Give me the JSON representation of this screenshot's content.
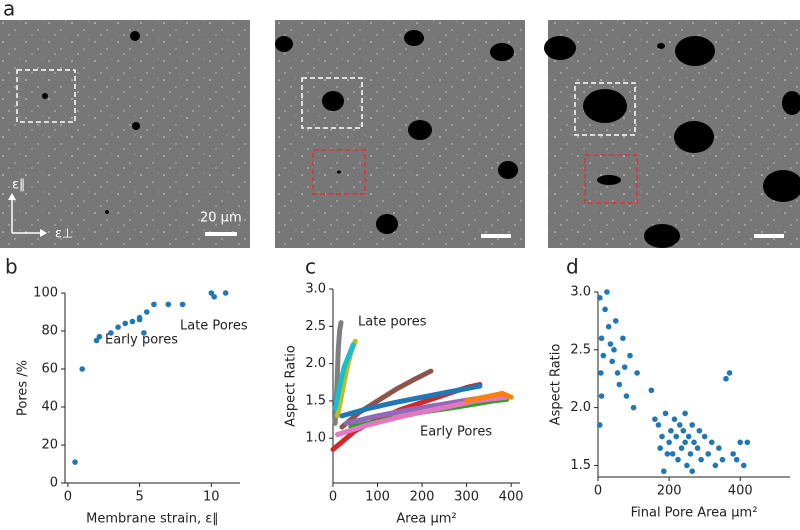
{
  "panel_labels": [
    "a",
    "b",
    "c",
    "d"
  ],
  "micrograph": {
    "scale_bar": "20 μm",
    "axis_parallel": "ε∥",
    "axis_perp": "ε⊥"
  },
  "chart_data": [
    {
      "type": "scatter",
      "xlabel": "Membrane strain, ε∥",
      "ylabel": "Pores /%",
      "annotations": [
        "Early pores",
        "Late Pores"
      ],
      "color": "#1f77b4",
      "x": [
        0.5,
        1,
        2,
        2.2,
        3,
        3.5,
        4,
        4.5,
        5,
        5,
        5.3,
        5.5,
        6,
        7,
        8,
        10,
        10.2,
        11
      ],
      "values": [
        11,
        60,
        75,
        77,
        79,
        82,
        84,
        85,
        86,
        87,
        79,
        90,
        94,
        94,
        94,
        100,
        98,
        100
      ],
      "xlim": [
        -0.2,
        12
      ],
      "xticks": [
        0,
        5,
        10
      ],
      "ylim": [
        0,
        100
      ],
      "yticks": [
        0,
        20,
        40,
        60,
        80,
        100
      ]
    },
    {
      "type": "line",
      "xlabel": "Area μm²",
      "ylabel": "Aspect Ratio",
      "annotations": [
        "Late pores",
        "Early Pores"
      ],
      "series": [
        {
          "color": "#7f7f7f",
          "x": [
            5,
            8,
            10,
            12,
            15,
            18
          ],
          "values": [
            1.2,
            1.6,
            1.9,
            2.2,
            2.45,
            2.55
          ]
        },
        {
          "color": "#bcbd22",
          "x": [
            10,
            20,
            30,
            40,
            50
          ],
          "values": [
            1.3,
            1.6,
            1.9,
            2.15,
            2.3
          ]
        },
        {
          "color": "#17becf",
          "x": [
            5,
            15,
            25,
            35,
            45
          ],
          "values": [
            1.4,
            1.7,
            1.95,
            2.1,
            2.25
          ]
        },
        {
          "color": "#8c564b",
          "x": [
            20,
            60,
            100,
            140,
            180,
            220
          ],
          "values": [
            1.15,
            1.35,
            1.5,
            1.65,
            1.78,
            1.9
          ]
        },
        {
          "color": "#d62728",
          "x": [
            0,
            50,
            100,
            150,
            200,
            250,
            300,
            330
          ],
          "values": [
            0.85,
            1.1,
            1.25,
            1.38,
            1.48,
            1.58,
            1.68,
            1.72
          ]
        },
        {
          "color": "#1f77b4",
          "x": [
            20,
            80,
            140,
            200,
            260,
            330
          ],
          "values": [
            1.3,
            1.4,
            1.48,
            1.55,
            1.62,
            1.7
          ]
        },
        {
          "color": "#9467bd",
          "x": [
            30,
            100,
            170,
            240,
            310,
            380
          ],
          "values": [
            1.2,
            1.3,
            1.38,
            1.45,
            1.52,
            1.58
          ]
        },
        {
          "color": "#2ca02c",
          "x": [
            40,
            120,
            200,
            280,
            360,
            390
          ],
          "values": [
            1.15,
            1.25,
            1.35,
            1.42,
            1.5,
            1.52
          ]
        },
        {
          "color": "#e377c2",
          "x": [
            10,
            80,
            160,
            240,
            320,
            390
          ],
          "values": [
            1.05,
            1.18,
            1.3,
            1.4,
            1.5,
            1.55
          ]
        },
        {
          "color": "#ff7f0e",
          "x": [
            300,
            340,
            380,
            400
          ],
          "values": [
            1.5,
            1.55,
            1.6,
            1.55
          ]
        }
      ],
      "xlim": [
        0,
        420
      ],
      "xticks": [
        0,
        100,
        200,
        300,
        400
      ],
      "ylim": [
        0.4,
        3.0
      ],
      "yticks": [
        {
          "value": 1,
          "label": "1.0"
        },
        1.5,
        {
          "value": 2,
          "label": "2.0"
        },
        2.5,
        {
          "value": 3,
          "label": "3.0"
        }
      ]
    },
    {
      "type": "scatter",
      "xlabel": "Final Pore Area μm²",
      "ylabel": "Aspect Ratio",
      "color": "#1f77b4",
      "x": [
        5,
        10,
        15,
        8,
        20,
        25,
        30,
        35,
        40,
        45,
        50,
        55,
        60,
        70,
        75,
        80,
        90,
        5,
        10,
        100,
        110,
        150,
        160,
        170,
        180,
        190,
        200,
        205,
        210,
        215,
        220,
        225,
        230,
        235,
        240,
        245,
        250,
        255,
        260,
        265,
        270,
        280,
        290,
        300,
        310,
        320,
        330,
        340,
        350,
        360,
        370,
        380,
        390,
        400,
        410,
        420,
        185,
        195,
        175,
        265,
        285,
        245
      ],
      "values": [
        2.95,
        2.6,
        2.45,
        2.3,
        2.85,
        3.0,
        2.7,
        2.55,
        2.4,
        2.5,
        2.75,
        2.3,
        2.2,
        2.6,
        2.35,
        2.1,
        2.45,
        1.85,
        2.1,
        2.0,
        2.3,
        2.15,
        1.9,
        1.85,
        1.75,
        1.95,
        1.7,
        1.8,
        1.6,
        1.9,
        1.75,
        1.55,
        1.85,
        1.65,
        1.8,
        1.7,
        1.5,
        1.75,
        1.6,
        1.85,
        1.7,
        1.65,
        1.55,
        1.75,
        1.6,
        1.7,
        1.5,
        1.65,
        1.55,
        2.25,
        2.3,
        1.6,
        1.55,
        1.7,
        1.5,
        1.7,
        1.45,
        1.6,
        1.65,
        1.45,
        1.8,
        1.95
      ],
      "xlim": [
        0,
        540
      ],
      "xticks": [
        0,
        200,
        400
      ],
      "ylim": [
        1.4,
        3.0
      ],
      "yticks": [
        1.5,
        {
          "value": 2,
          "label": "2.0"
        },
        2.5,
        {
          "value": 3,
          "label": "3.0"
        }
      ]
    }
  ]
}
